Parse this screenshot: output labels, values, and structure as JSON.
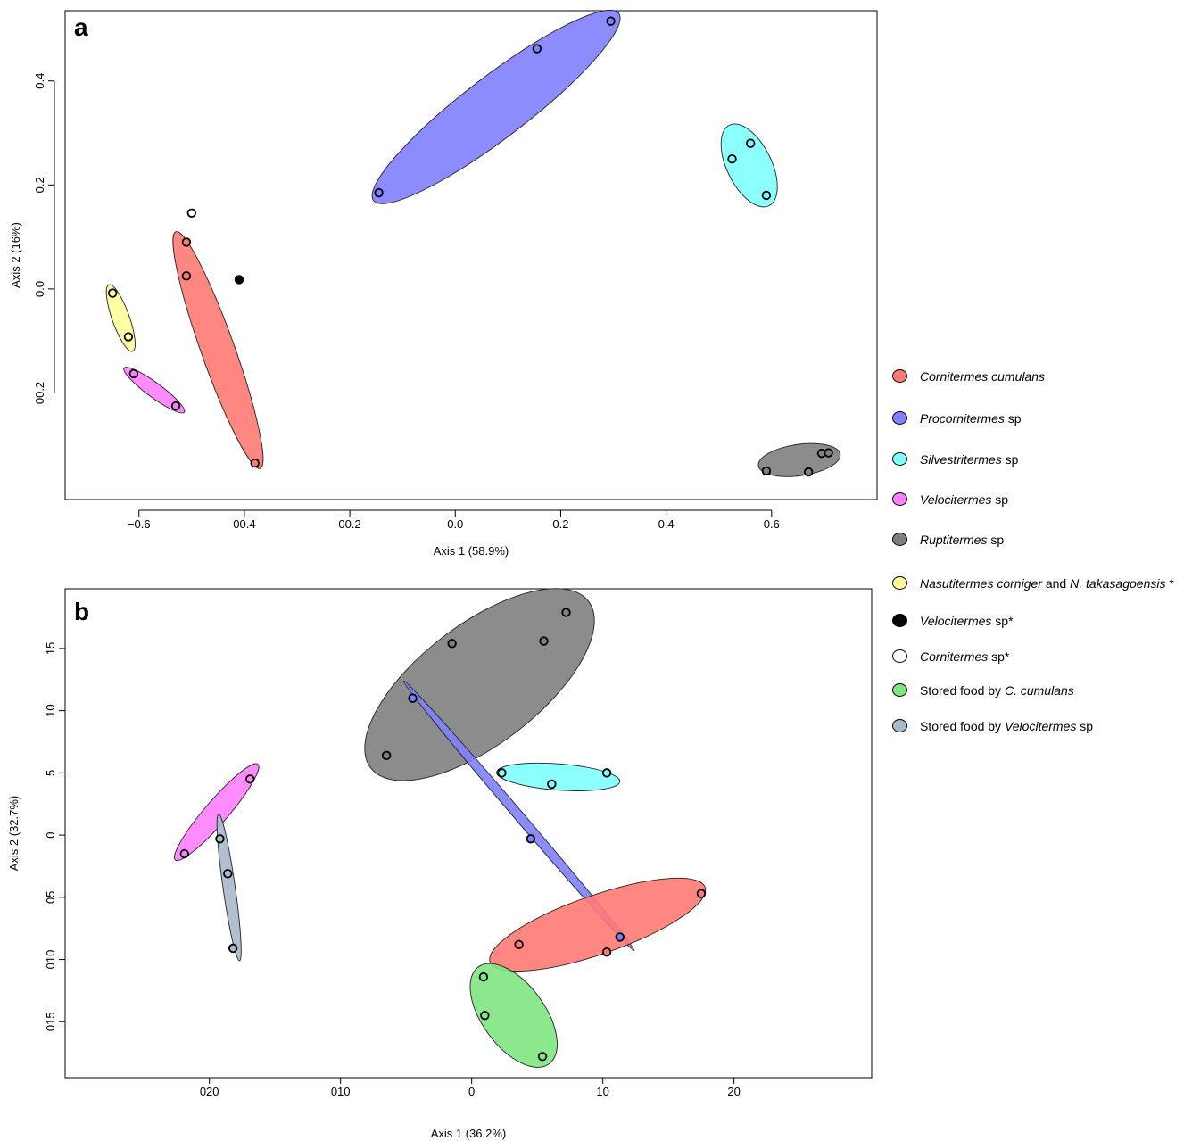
{
  "chart_data": [
    {
      "type": "scatter",
      "panel_label": "a",
      "xlabel": "Axis 1 (58.9%)",
      "ylabel": "Axis 2 (16%)",
      "xlim": [
        -0.74,
        0.8
      ],
      "ylim": [
        -0.405,
        0.535
      ],
      "x_ticks": [
        {
          "value": -0.6,
          "label": "−0.6"
        },
        {
          "value": -0.4,
          "label": "00.4"
        },
        {
          "value": -0.2,
          "label": "00.2"
        },
        {
          "value": 0.0,
          "label": "0.0"
        },
        {
          "value": 0.2,
          "label": "0.2"
        },
        {
          "value": 0.4,
          "label": "0.4"
        },
        {
          "value": 0.6,
          "label": "0.6"
        }
      ],
      "y_ticks": [
        {
          "value": -0.2,
          "label": "00.2"
        },
        {
          "value": 0.0,
          "label": "0.0"
        },
        {
          "value": 0.2,
          "label": "0.2"
        },
        {
          "value": 0.4,
          "label": "0.4"
        }
      ],
      "groups": [
        {
          "name": "Cornitermes cumulans",
          "color": "#ff7a74",
          "points": [
            [
              -0.51,
              0.09
            ],
            [
              -0.51,
              0.025
            ],
            [
              -0.38,
              -0.335
            ]
          ],
          "ellipse": {
            "p1": [
              -0.53,
              0.11
            ],
            "p2": [
              -0.37,
              -0.345
            ],
            "width": 0.064
          }
        },
        {
          "name": "Procornitermes sp",
          "color": "#7f7fff",
          "points": [
            [
              -0.145,
              0.185
            ],
            [
              0.155,
              0.462
            ],
            [
              0.295,
              0.515
            ]
          ],
          "ellipse": {
            "p1": [
              -0.155,
              0.17
            ],
            "p2": [
              0.31,
              0.53
            ],
            "width": 0.118
          }
        },
        {
          "name": "Silvestritermes sp",
          "color": "#7fffff",
          "points": [
            [
              0.525,
              0.25
            ],
            [
              0.56,
              0.28
            ],
            [
              0.59,
              0.18
            ]
          ],
          "ellipse": {
            "p1": [
              0.52,
              0.315
            ],
            "p2": [
              0.595,
              0.16
            ],
            "width": 0.085
          }
        },
        {
          "name": "Velocitermes sp",
          "color": "#ff7fff",
          "points": [
            [
              -0.61,
              -0.163
            ],
            [
              -0.53,
              -0.225
            ]
          ],
          "ellipse": {
            "p1": [
              -0.628,
              -0.152
            ],
            "p2": [
              -0.514,
              -0.237
            ],
            "width": 0.028
          }
        },
        {
          "name": "Ruptitermes sp",
          "color": "#7f7f7f",
          "points": [
            [
              0.59,
              -0.35
            ],
            [
              0.67,
              -0.352
            ],
            [
              0.695,
              -0.316
            ],
            [
              0.708,
              -0.315
            ]
          ],
          "ellipse": {
            "p1": [
              0.575,
              -0.34
            ],
            "p2": [
              0.73,
              -0.318
            ],
            "width": 0.06
          }
        },
        {
          "name": "Nasutitermes corniger and N. takasagoensis",
          "color": "#ffff99",
          "points": [
            [
              -0.65,
              -0.008
            ],
            [
              -0.62,
              -0.092
            ]
          ],
          "ellipse": {
            "p1": [
              -0.657,
              0.008
            ],
            "p2": [
              -0.612,
              -0.12
            ],
            "width": 0.033
          }
        },
        {
          "name": "Velocitermes sp",
          "color": "#000000",
          "points": [
            [
              -0.41,
              0.018
            ]
          ]
        },
        {
          "name": "Cornitermes sp",
          "color": "#ffffff",
          "points": [
            [
              -0.5,
              0.146
            ]
          ]
        }
      ]
    },
    {
      "type": "scatter",
      "panel_label": "b",
      "xlabel": "Axis 1 (36.2%)",
      "ylabel": "Axis 2 (32.7%)",
      "xlim": [
        -31,
        30.5
      ],
      "ylim": [
        -19.5,
        19.8
      ],
      "x_ticks": [
        {
          "value": -20,
          "label": "020"
        },
        {
          "value": -10,
          "label": "010"
        },
        {
          "value": 0,
          "label": "0"
        },
        {
          "value": 10,
          "label": "10"
        },
        {
          "value": 20,
          "label": "20"
        }
      ],
      "y_ticks": [
        {
          "value": -15,
          "label": "015"
        },
        {
          "value": -10,
          "label": "010"
        },
        {
          "value": -5,
          "label": "05"
        },
        {
          "value": 0,
          "label": "0"
        },
        {
          "value": 5,
          "label": "5"
        },
        {
          "value": 10,
          "label": "10"
        },
        {
          "value": 15,
          "label": "15"
        }
      ],
      "groups": [
        {
          "name": "Ruptitermes sp",
          "color": "#7f7f7f",
          "points": [
            [
              -6.5,
              6.4
            ],
            [
              -1.5,
              15.4
            ],
            [
              5.5,
              15.6
            ],
            [
              7.2,
              17.9
            ]
          ],
          "ellipse": {
            "p1": [
              -7.7,
              5.4
            ],
            "p2": [
              8.9,
              18.8
            ],
            "width": 9.4
          }
        },
        {
          "name": "Procornitermes sp",
          "color": "#7f7fff",
          "points": [
            [
              -4.5,
              11.0
            ],
            [
              4.5,
              -0.3
            ],
            [
              11.3,
              -8.2
            ]
          ],
          "ellipse": {
            "p1": [
              -5.2,
              12.4
            ],
            "p2": [
              12.4,
              -9.3
            ],
            "width": 0.75
          }
        },
        {
          "name": "Silvestritermes sp",
          "color": "#7fffff",
          "points": [
            [
              2.3,
              5.0
            ],
            [
              6.1,
              4.1
            ],
            [
              10.3,
              5.0
            ]
          ],
          "ellipse": {
            "p1": [
              1.9,
              5.05
            ],
            "p2": [
              11.3,
              4.3
            ],
            "width": 2.05
          }
        },
        {
          "name": "Velocitermes sp",
          "color": "#ff7fff",
          "points": [
            [
              -21.9,
              -1.5
            ],
            [
              -16.9,
              4.5
            ]
          ],
          "ellipse": {
            "p1": [
              -22.6,
              -2.0
            ],
            "p2": [
              -16.3,
              5.7
            ],
            "width": 1.8
          }
        },
        {
          "name": "Stored food by Velocitermes sp",
          "color": "#a9b9cc",
          "points": [
            [
              -19.2,
              -0.3
            ],
            [
              -18.6,
              -3.1
            ],
            [
              -18.2,
              -9.1
            ]
          ],
          "ellipse": {
            "p1": [
              -19.3,
              1.7
            ],
            "p2": [
              -17.7,
              -10.1
            ],
            "width": 0.95
          }
        },
        {
          "name": "Cornitermes cumulans",
          "color": "#ff7a74",
          "points": [
            [
              3.6,
              -8.8
            ],
            [
              10.3,
              -9.4
            ],
            [
              17.5,
              -4.7
            ]
          ],
          "ellipse": {
            "p1": [
              1.4,
              -10.2
            ],
            "p2": [
              17.8,
              -4.2
            ],
            "width": 4.6
          }
        },
        {
          "name": "Stored food by C. cumulans",
          "color": "#7fe67f",
          "points": [
            [
              0.9,
              -11.4
            ],
            [
              1.0,
              -14.5
            ],
            [
              5.4,
              -17.8
            ]
          ],
          "ellipse": {
            "p1": [
              0.5,
              -10.6
            ],
            "p2": [
              5.9,
              -18.4
            ],
            "width": 4.9
          }
        }
      ]
    }
  ],
  "legend": [
    {
      "color": "#ff7a74",
      "italic": "Cornitermes cumulans",
      "rest": ""
    },
    {
      "color": "#7f7fff",
      "italic": "Procornitermes",
      "rest": " sp"
    },
    {
      "color": "#7fffff",
      "italic": "Silvestritermes",
      "rest": " sp"
    },
    {
      "color": "#ff7fff",
      "italic": "Velocitermes",
      "rest": " sp"
    },
    {
      "color": "#7f7f7f",
      "italic": "Ruptitermes",
      "rest": " sp"
    },
    {
      "color": "#ffff99",
      "italic": "Nasutitermes corniger",
      "rest": " and ",
      "italic2": "N. takasagoensis",
      "rest2": " *"
    },
    {
      "color": "#000000",
      "italic": "Velocitermes",
      "rest": " sp*"
    },
    {
      "color": "#ffffff",
      "italic": "Cornitermes",
      "rest": " sp*"
    },
    {
      "color": "#7fe67f",
      "pre": "Stored food by ",
      "italic": "C. cumulans",
      "rest": ""
    },
    {
      "color": "#a9b9cc",
      "pre": "Stored food by ",
      "italic": "Velocitermes",
      "rest": " sp"
    }
  ]
}
